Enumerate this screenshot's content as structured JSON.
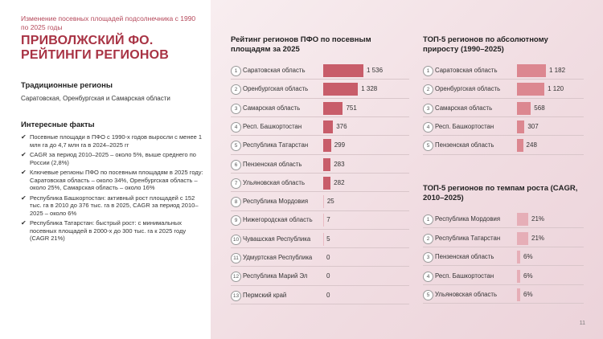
{
  "header": {
    "subtitle": "Изменение посевных площадей подсолнечника с 1990 по 2025 годы",
    "title_line1": "ПРИВОЛЖСКИЙ ФО.",
    "title_line2": "РЕЙТИНГИ РЕГИОНОВ"
  },
  "traditional": {
    "heading": "Традиционные регионы",
    "text": "Саратовская, Оренбургская и Самарская области"
  },
  "facts": {
    "heading": "Интересные факты",
    "items": [
      "Посевные площади в ПФО с 1990-х годов выросли с менее 1 млн га до 4,7 млн га в 2024–2025 гг",
      "CAGR за период 2010–2025 – около 5%, выше среднего по России (2,8%)",
      "Ключевые регионы ПФО по посевным площадям в 2025 году: Саратовская область – около 34%, Оренбургская область – около 25%, Самарская область – около 16%",
      "Республика Башкортостан: активный рост площадей с 152 тыс. га в 2010 до 376 тыс. га в 2025, CAGR за период 2010–2025 – около 6%",
      "Республика Татарстан: быстрый рост: с минимальных посевных площадей в 2000-х до 300 тыс. га к 2025 году (CAGR 21%)"
    ]
  },
  "chart_data": [
    {
      "type": "bar",
      "title": "Рейтинг регионов ПФО по посевным площадям за 2025",
      "categories": [
        "Саратовская область",
        "Оренбургская область",
        "Самарская область",
        "Респ. Башкортостан",
        "Республика Татарстан",
        "Пензенская область",
        "Ульяновская область",
        "Республика Мордовия",
        "Нижегородская область",
        "Чувашская Республика",
        "Удмуртская Республика",
        "Республика Марий Эл",
        "Пермский край"
      ],
      "values": [
        1536,
        1328,
        751,
        376,
        299,
        283,
        282,
        25,
        7,
        5,
        0,
        0,
        0
      ],
      "labels": [
        "1 536",
        "1 328",
        "751",
        "376",
        "299",
        "283",
        "282",
        "25",
        "7",
        "5",
        "0",
        "0",
        "0"
      ],
      "colors": [
        "#c85d6a",
        "#c85d6a",
        "#c85d6a",
        "#c85d6a",
        "#c85d6a",
        "#c85d6a",
        "#c85d6a",
        "#ebbcc4",
        "#ebbcc4",
        "#ebbcc4",
        "#ebbcc4",
        "#ebbcc4",
        "#ebbcc4"
      ]
    },
    {
      "type": "bar",
      "title": "ТОП-5 регионов по абсолютному приросту (1990–2025)",
      "categories": [
        "Саратовская область",
        "Оренбургская область",
        "Самарская область",
        "Респ. Башкортостан",
        "Пензенская область"
      ],
      "values": [
        1182,
        1120,
        568,
        307,
        248
      ],
      "labels": [
        "1 182",
        "1 120",
        "568",
        "307",
        "248"
      ],
      "colors": [
        "#dc8790",
        "#dc8790",
        "#dc8790",
        "#dc8790",
        "#dc8790"
      ]
    },
    {
      "type": "bar",
      "title": "ТОП-5 регионов по темпам роста (CAGR, 2010–2025)",
      "categories": [
        "Республика Мордовия",
        "Республика Татарстан",
        "Пензенская область",
        "Респ. Башкортостан",
        "Ульяновская область"
      ],
      "values": [
        21,
        21,
        6,
        6,
        6
      ],
      "labels": [
        "21%",
        "21%",
        "6%",
        "6%",
        "6%"
      ],
      "colors": [
        "#e6aeb7",
        "#e6aeb7",
        "#e6aeb7",
        "#e6aeb7",
        "#e6aeb7"
      ]
    }
  ],
  "page_number": "11"
}
